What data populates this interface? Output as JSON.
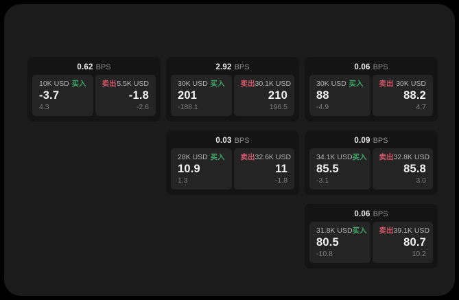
{
  "labels": {
    "bps_unit": "BPS",
    "buy": "买入",
    "sell": "卖出"
  },
  "colors": {
    "buy_green": "#3da568",
    "sell_red": "#d25768",
    "window_bg": "#1b1b1b",
    "card_bg": "#141414",
    "panel_bg": "#242424",
    "outer_bg": "#000000"
  },
  "cards": [
    {
      "bps": "0.62",
      "buy": {
        "size": "10K USD",
        "value": "-3.7",
        "sub": "4.3"
      },
      "sell": {
        "size": "5.5K USD",
        "value": "-1.8",
        "sub": "-2.6"
      }
    },
    {
      "bps": "2.92",
      "buy": {
        "size": "30K USD",
        "value": "201",
        "sub": "-188.1"
      },
      "sell": {
        "size": "30.1K USD",
        "value": "210",
        "sub": "196.5"
      }
    },
    {
      "bps": "0.06",
      "buy": {
        "size": "30K USD",
        "value": "88",
        "sub": "-4.9"
      },
      "sell": {
        "size": "30K USD",
        "value": "88.2",
        "sub": "4.7"
      }
    },
    {
      "bps": "0.03",
      "buy": {
        "size": "28K USD",
        "value": "10.9",
        "sub": "1.3"
      },
      "sell": {
        "size": "32.6K USD",
        "value": "11",
        "sub": "-1.8"
      }
    },
    {
      "bps": "0.09",
      "buy": {
        "size": "34.1K USD",
        "value": "85.5",
        "sub": "-3.1"
      },
      "sell": {
        "size": "32.8K USD",
        "value": "85.8",
        "sub": "3.0"
      }
    },
    {
      "bps": "0.06",
      "buy": {
        "size": "31.8K USD",
        "value": "80.5",
        "sub": "-10.8"
      },
      "sell": {
        "size": "39.1K USD",
        "value": "80.7",
        "sub": "10.2"
      }
    }
  ]
}
